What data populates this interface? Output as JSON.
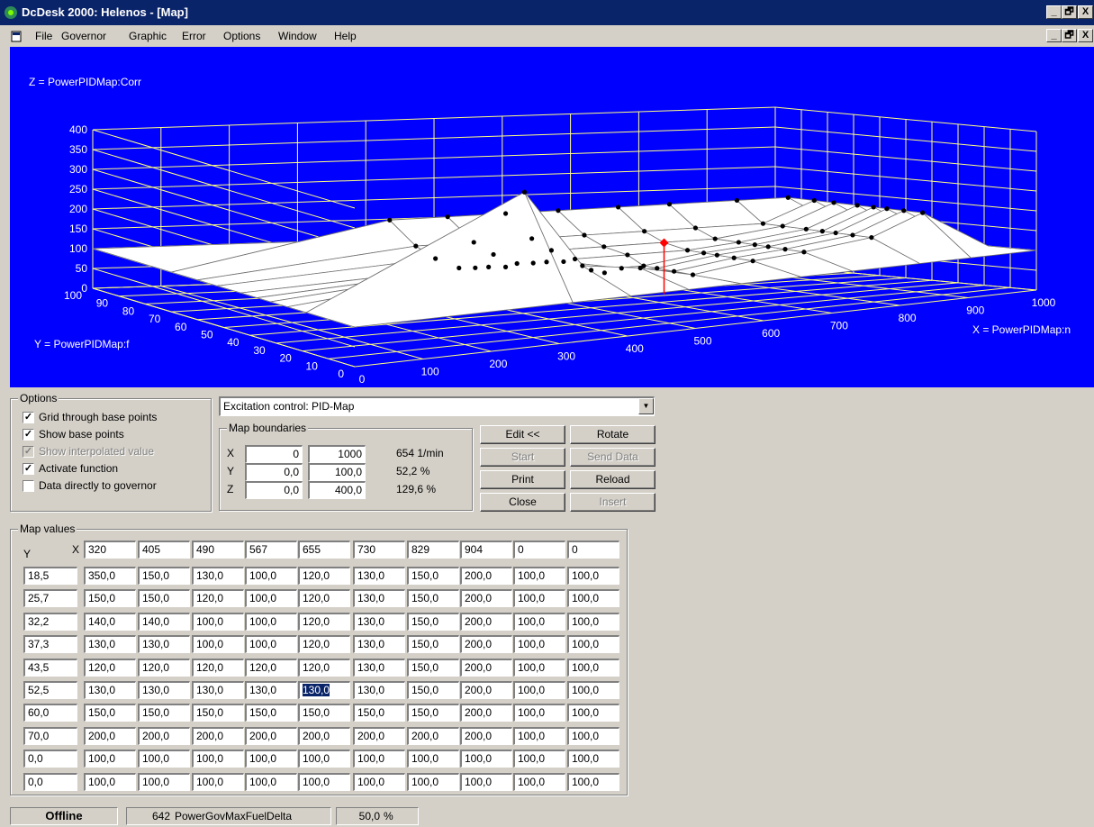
{
  "window": {
    "title": "DcDesk 2000: Helenos - [Map]",
    "controls": [
      "_",
      "🗗",
      "X"
    ]
  },
  "menu": [
    "File",
    "Governor",
    "Graphic",
    "Error",
    "Options",
    "Window",
    "Help"
  ],
  "plot": {
    "z_label": "Z = PowerPIDMap:Corr",
    "y_label": "Y = PowerPIDMap:f",
    "x_label": "X = PowerPIDMap:n",
    "z_ticks": [
      "400",
      "350",
      "300",
      "250",
      "200",
      "150",
      "100",
      "50",
      "0"
    ],
    "y_ticks": [
      "100",
      "90",
      "80",
      "70",
      "60",
      "50",
      "40",
      "30",
      "20",
      "10",
      "0"
    ],
    "x_ticks": [
      "0",
      "100",
      "200",
      "300",
      "400",
      "500",
      "600",
      "700",
      "800",
      "900",
      "1000"
    ],
    "colors": {
      "background": "#0000ff",
      "grid": "#ffff80",
      "surface": "#ffffff",
      "marker": "#ff0000"
    }
  },
  "options": {
    "title": "Options",
    "items": [
      {
        "label": "Grid through base points",
        "checked": true,
        "enabled": true
      },
      {
        "label": "Show base points",
        "checked": true,
        "enabled": true
      },
      {
        "label": "Show interpolated value",
        "checked": true,
        "enabled": false
      },
      {
        "label": "Activate function",
        "checked": true,
        "enabled": true
      },
      {
        "label": "Data directly to governor",
        "checked": false,
        "enabled": true
      }
    ]
  },
  "map_select": {
    "value": "Excitation control: PID-Map"
  },
  "boundaries": {
    "title": "Map boundaries",
    "rows": [
      {
        "axis": "X",
        "min": "0",
        "max": "1000",
        "current": "654 1/min"
      },
      {
        "axis": "Y",
        "min": "0,0",
        "max": "100,0",
        "current": "52,2 %"
      },
      {
        "axis": "Z",
        "min": "0,0",
        "max": "400,0",
        "current": "129,6 %"
      }
    ]
  },
  "buttons": {
    "edit": "Edit <<",
    "rotate": "Rotate",
    "start": "Start",
    "send_data": "Send Data",
    "print": "Print",
    "reload": "Reload",
    "close": "Close",
    "insert": "Insert"
  },
  "map_values": {
    "title": "Map values",
    "y_axis": "Y",
    "x_axis": "X",
    "x_values": [
      "320",
      "405",
      "490",
      "567",
      "655",
      "730",
      "829",
      "904",
      "0",
      "0"
    ],
    "y_values": [
      "18,5",
      "25,7",
      "32,2",
      "37,3",
      "43,5",
      "52,5",
      "60,0",
      "70,0",
      "0,0",
      "0,0"
    ],
    "rows": [
      [
        "350,0",
        "150,0",
        "130,0",
        "100,0",
        "120,0",
        "130,0",
        "150,0",
        "200,0",
        "100,0",
        "100,0"
      ],
      [
        "150,0",
        "150,0",
        "120,0",
        "100,0",
        "120,0",
        "130,0",
        "150,0",
        "200,0",
        "100,0",
        "100,0"
      ],
      [
        "140,0",
        "140,0",
        "100,0",
        "100,0",
        "120,0",
        "130,0",
        "150,0",
        "200,0",
        "100,0",
        "100,0"
      ],
      [
        "130,0",
        "130,0",
        "100,0",
        "100,0",
        "120,0",
        "130,0",
        "150,0",
        "200,0",
        "100,0",
        "100,0"
      ],
      [
        "120,0",
        "120,0",
        "120,0",
        "120,0",
        "120,0",
        "130,0",
        "150,0",
        "200,0",
        "100,0",
        "100,0"
      ],
      [
        "130,0",
        "130,0",
        "130,0",
        "130,0",
        "130,0",
        "130,0",
        "150,0",
        "200,0",
        "100,0",
        "100,0"
      ],
      [
        "150,0",
        "150,0",
        "150,0",
        "150,0",
        "150,0",
        "150,0",
        "150,0",
        "200,0",
        "100,0",
        "100,0"
      ],
      [
        "200,0",
        "200,0",
        "200,0",
        "200,0",
        "200,0",
        "200,0",
        "200,0",
        "200,0",
        "100,0",
        "100,0"
      ],
      [
        "100,0",
        "100,0",
        "100,0",
        "100,0",
        "100,0",
        "100,0",
        "100,0",
        "100,0",
        "100,0",
        "100,0"
      ],
      [
        "100,0",
        "100,0",
        "100,0",
        "100,0",
        "100,0",
        "100,0",
        "100,0",
        "100,0",
        "100,0",
        "100,0"
      ]
    ],
    "selected_cell": {
      "row": 5,
      "col": 4
    }
  },
  "status": {
    "connection": "Offline",
    "param_id": "642",
    "param_name": "PowerGovMaxFuelDelta",
    "param_value": "50,0",
    "param_unit": "%"
  }
}
